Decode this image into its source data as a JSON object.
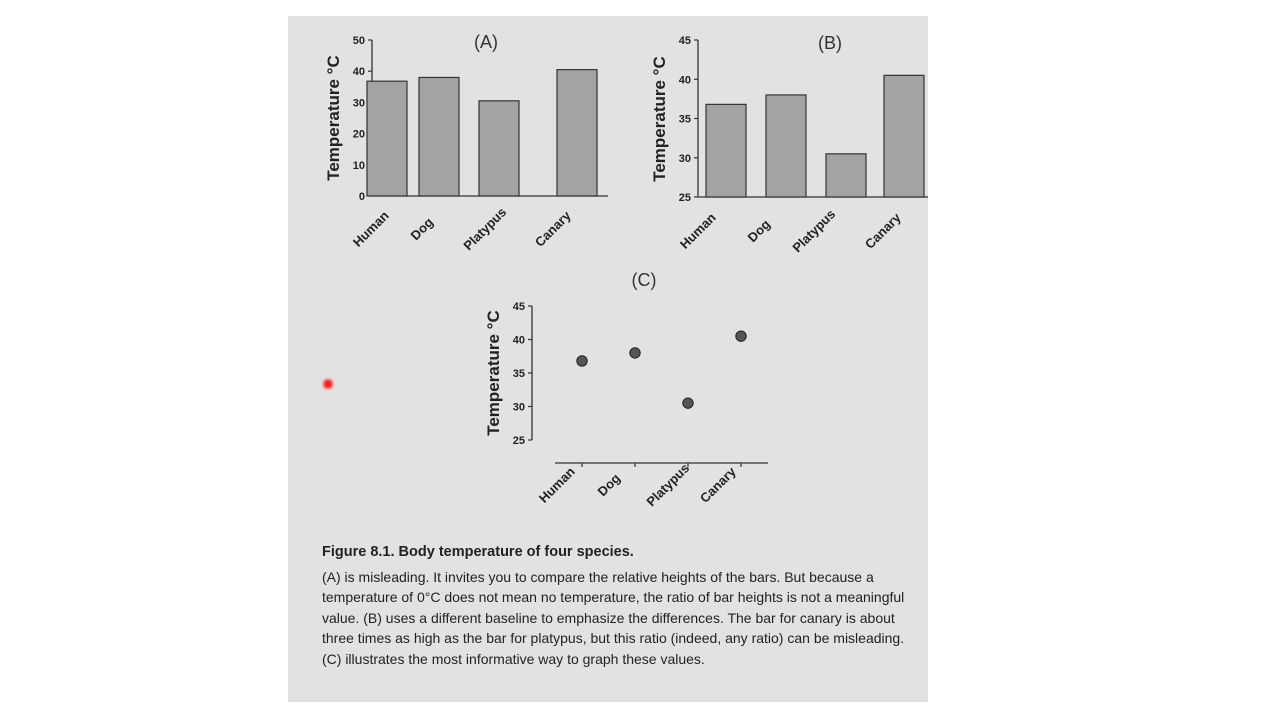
{
  "chart_data": [
    {
      "type": "bar",
      "title": "(A)",
      "categories": [
        "Human",
        "Dog",
        "Platypus",
        "Canary"
      ],
      "values": [
        36.8,
        38.0,
        30.5,
        40.5
      ],
      "ylabel": "Temperature °C",
      "ylim": [
        0,
        50
      ],
      "yticks": [
        "0",
        "10",
        "20",
        "30",
        "40",
        "50"
      ],
      "grid": false
    },
    {
      "type": "bar",
      "title": "(B)",
      "categories": [
        "Human",
        "Dog",
        "Platypus",
        "Canary"
      ],
      "values": [
        36.8,
        38.0,
        30.5,
        40.5
      ],
      "ylabel": "Temperature °C",
      "ylim": [
        25,
        45
      ],
      "yticks": [
        "25",
        "30",
        "35",
        "40",
        "45"
      ],
      "grid": false
    },
    {
      "type": "scatter",
      "title": "(C)",
      "categories": [
        "Human",
        "Dog",
        "Platypus",
        "Canary"
      ],
      "values": [
        36.8,
        38.0,
        30.5,
        40.5
      ],
      "ylabel": "Temperature °C",
      "ylim": [
        25,
        45
      ],
      "yticks": [
        "25",
        "30",
        "35",
        "40",
        "45"
      ],
      "grid": false
    }
  ],
  "caption": {
    "title": "Figure 8.1. Body temperature of four species.",
    "body": "(A) is misleading. It invites you to compare the relative heights of the bars. But because a temperature of 0°C does not mean no temperature, the ratio of bar heights is not a meaningful value. (B) uses a different baseline to emphasize the differences. The bar for canary is about three times as high as the bar for platypus, but this ratio (indeed, any ratio) can be misleading. (C) illustrates the most informative way to graph these values."
  },
  "colors": {
    "bar": "#a3a3a3",
    "point": "#555555",
    "marker": "#ff2020"
  }
}
